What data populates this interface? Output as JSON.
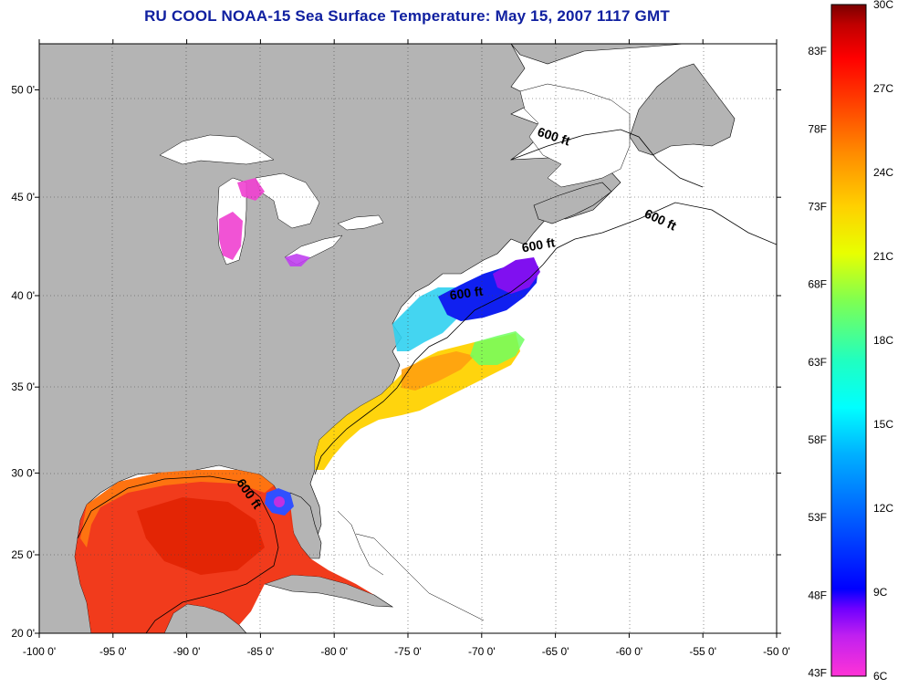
{
  "title": "RU COOL  NOAA-15  Sea Surface Temperature:  May 15, 2007 1117 GMT",
  "map": {
    "lon_range": [
      -100,
      -50
    ],
    "lat_range": [
      20,
      52
    ],
    "x_ticks": [
      {
        "lon": -100,
        "label": "-100 0'"
      },
      {
        "lon": -95,
        "label": "-95 0'"
      },
      {
        "lon": -90,
        "label": "-90 0'"
      },
      {
        "lon": -85,
        "label": "-85 0'"
      },
      {
        "lon": -80,
        "label": "-80 0'"
      },
      {
        "lon": -75,
        "label": "-75 0'"
      },
      {
        "lon": -70,
        "label": "-70 0'"
      },
      {
        "lon": -65,
        "label": "-65 0'"
      },
      {
        "lon": -60,
        "label": "-60 0'"
      },
      {
        "lon": -55,
        "label": "-55 0'"
      },
      {
        "lon": -50,
        "label": "-50 0'"
      }
    ],
    "y_ticks": [
      {
        "lat": 50,
        "label": "50 0'"
      },
      {
        "lat": 45,
        "label": "45 0'"
      },
      {
        "lat": 40,
        "label": "40 0'"
      },
      {
        "lat": 35,
        "label": "35 0'"
      },
      {
        "lat": 30,
        "label": "30 0'"
      },
      {
        "lat": 25,
        "label": "25 0'"
      },
      {
        "lat": 20,
        "label": "20 0'"
      }
    ],
    "land_color": "#b4b4b4",
    "contour_labels": [
      {
        "text": "600 ft",
        "lon": -65.2,
        "lat": 47.7,
        "rotate": 18
      },
      {
        "text": "600 ft",
        "lon": -58.0,
        "lat": 43.7,
        "rotate": 25
      },
      {
        "text": "600 ft",
        "lon": -66.1,
        "lat": 42.4,
        "rotate": -10
      },
      {
        "text": "600 ft",
        "lon": -71.0,
        "lat": 39.9,
        "rotate": -8
      },
      {
        "text": "600 ft",
        "lon": -86.0,
        "lat": 28.6,
        "rotate": 55
      }
    ]
  },
  "colorbar": {
    "left_labels": [
      "83F",
      "78F",
      "73F",
      "68F",
      "63F",
      "58F",
      "53F",
      "48F",
      "43F"
    ],
    "left_values_f": [
      83,
      78,
      73,
      68,
      63,
      58,
      53,
      48,
      43
    ],
    "right_labels": [
      "30C",
      "27C",
      "24C",
      "21C",
      "18C",
      "15C",
      "12C",
      "9C",
      "6C"
    ],
    "right_values_c": [
      30,
      27,
      24,
      21,
      18,
      15,
      12,
      9,
      6
    ],
    "range_c": [
      6,
      30
    ],
    "colors": [
      "#ff33d6",
      "#8800ff",
      "#0000ff",
      "#0060ff",
      "#00c0ff",
      "#00ffff",
      "#30ffb0",
      "#a0ff40",
      "#ffff00",
      "#ffc000",
      "#ff8000",
      "#ff4000",
      "#ff0000",
      "#c00000",
      "#800000"
    ]
  }
}
